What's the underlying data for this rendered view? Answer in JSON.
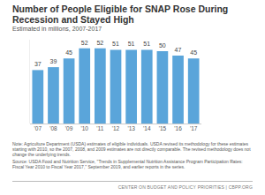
{
  "chart_data": {
    "type": "bar",
    "title": "Number of People Eligible for SNAP Rose During Recession and Stayed High",
    "subtitle": "Estimated in millions, 2007-2017",
    "categories": [
      "'07",
      "'08",
      "'09",
      "'10",
      "'11",
      "'12",
      "'13",
      "'14",
      "'15",
      "'16",
      "'17"
    ],
    "values": [
      37,
      39,
      45,
      52,
      52,
      51,
      51,
      51,
      50,
      47,
      45
    ],
    "color": "#5aa5da",
    "ylim": [
      0,
      58
    ],
    "grid": false,
    "data_labels": true,
    "tick_labels": "x",
    "note": "Note: Agriculture Department (USDA) estimates of eligible individuals. USDA revised its methodology for these estimates starting with 2010, so the 2007, 2008, and 2009 estimates are not directly comparable. The revised methodology does not change the underlying trends.",
    "source": "Source: USDA Food and Nutrition Service, \"Trends in Supplemental Nutrition Assistance Program Participation Rates: Fiscal Year 2010 to Fiscal Year 2017,\" September 2019, and earlier reports in the series.",
    "footer": "CENTER ON BUDGET AND POLICY PRIORITIES | CBPP.ORG"
  }
}
